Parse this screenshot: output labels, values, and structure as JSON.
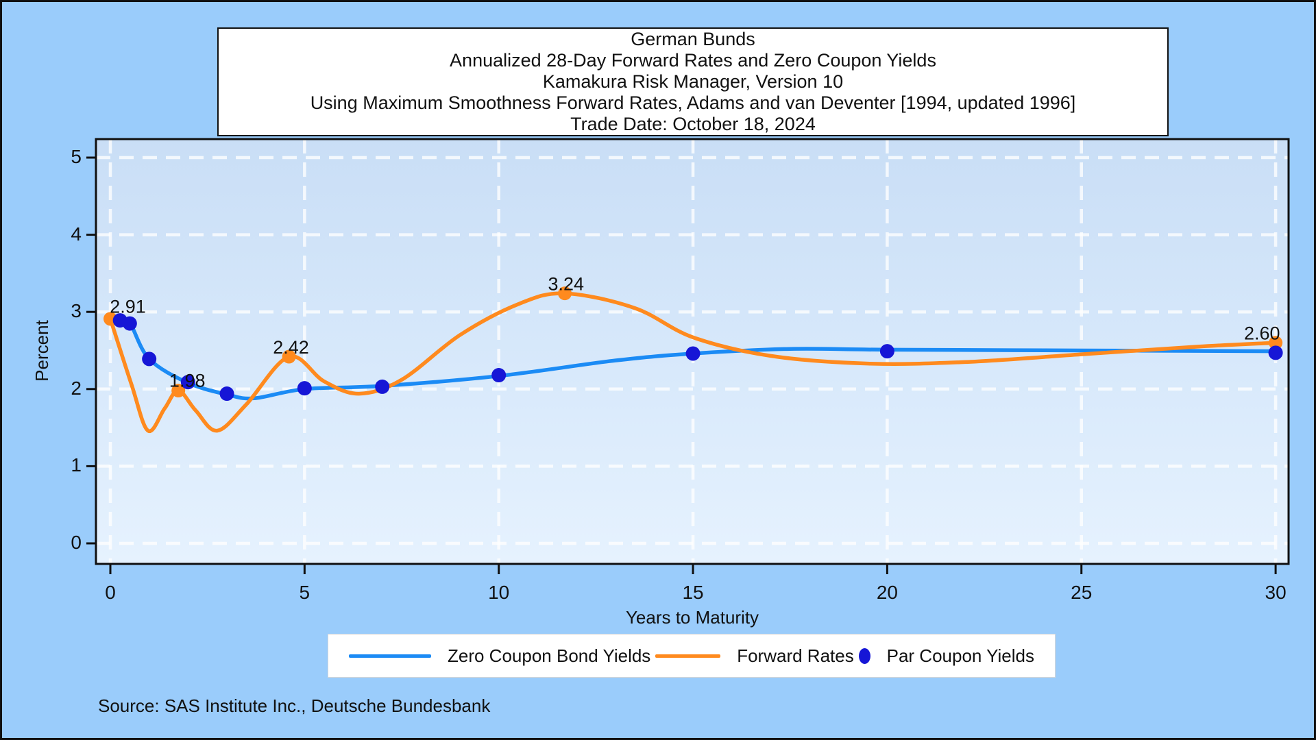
{
  "title": {
    "lines": [
      "German Bunds",
      "Annualized 28-Day Forward Rates and Zero Coupon Yields",
      "Kamakura Risk Manager, Version 10",
      "Using Maximum Smoothness Forward Rates, Adams and van Deventer [1994, updated 1996]",
      "Trade Date: October 18, 2024"
    ]
  },
  "source_text": "Source: SAS Institute Inc., Deutsche Bundesbank",
  "legend": {
    "items": [
      {
        "label": "Zero Coupon Bond Yields",
        "color": "#1b8bf5",
        "swatch": "line"
      },
      {
        "label": "Forward Rates",
        "color": "#ff8a1e",
        "swatch": "line"
      },
      {
        "label": "Par Coupon Yields",
        "color": "#1616d6",
        "swatch": "dot"
      }
    ]
  },
  "colors": {
    "outer_background": "#9accfb",
    "plot_background_top": "#c9def6",
    "plot_background_bottom": "#e6f2fe",
    "gridline": "#ffffff",
    "axis_frame": "#101010",
    "zero_coupon_line": "#1b8bf5",
    "forward_rate_line": "#ff8a1e",
    "par_coupon_dot": "#1616d6",
    "annotation_text": "#111111"
  },
  "chart_data": {
    "type": "line",
    "xlabel": "Years to Maturity",
    "ylabel": "Percent",
    "xlim": [
      -0.37,
      30.34
    ],
    "ylim": [
      -0.27,
      5.24
    ],
    "x_ticks": [
      0,
      5,
      10,
      15,
      20,
      25,
      30
    ],
    "y_ticks": [
      0,
      1,
      2,
      3,
      4,
      5
    ],
    "grid": "white-dashed",
    "legend_position": "bottom",
    "series": [
      {
        "name": "Zero Coupon Bond Yields",
        "type": "line",
        "color": "#1b8bf5",
        "points": [
          [
            0.25,
            2.89
          ],
          [
            0.5,
            2.86
          ],
          [
            1,
            2.39
          ],
          [
            2,
            2.08
          ],
          [
            3,
            1.93
          ],
          [
            3.7,
            1.88
          ],
          [
            5,
            2.0
          ],
          [
            7,
            2.04
          ],
          [
            10,
            2.17
          ],
          [
            13,
            2.37
          ],
          [
            15,
            2.46
          ],
          [
            17.5,
            2.52
          ],
          [
            20,
            2.51
          ],
          [
            25,
            2.5
          ],
          [
            30,
            2.49
          ]
        ]
      },
      {
        "name": "Forward Rates",
        "type": "line",
        "color": "#ff8a1e",
        "points": [
          [
            0,
            2.91
          ],
          [
            0.55,
            2.05
          ],
          [
            0.97,
            1.46
          ],
          [
            1.4,
            1.75
          ],
          [
            1.75,
            1.98
          ],
          [
            2.2,
            1.72
          ],
          [
            2.75,
            1.46
          ],
          [
            3.5,
            1.8
          ],
          [
            4.6,
            2.42
          ],
          [
            5.5,
            2.1
          ],
          [
            6.4,
            1.94
          ],
          [
            7.5,
            2.12
          ],
          [
            9,
            2.7
          ],
          [
            10.5,
            3.1
          ],
          [
            11.7,
            3.24
          ],
          [
            13.5,
            3.05
          ],
          [
            15,
            2.67
          ],
          [
            17,
            2.43
          ],
          [
            19.5,
            2.33
          ],
          [
            22,
            2.35
          ],
          [
            25,
            2.45
          ],
          [
            28,
            2.55
          ],
          [
            30,
            2.6
          ]
        ],
        "markers": [
          [
            0,
            2.91
          ],
          [
            1.75,
            1.98
          ],
          [
            4.6,
            2.42
          ],
          [
            11.7,
            3.24
          ],
          [
            30,
            2.6
          ]
        ]
      },
      {
        "name": "Par Coupon Yields",
        "type": "scatter",
        "color": "#1616d6",
        "points": [
          [
            0.25,
            2.89
          ],
          [
            0.5,
            2.85
          ],
          [
            1,
            2.39
          ],
          [
            2,
            2.09
          ],
          [
            3,
            1.94
          ],
          [
            5,
            2.01
          ],
          [
            7,
            2.03
          ],
          [
            10,
            2.18
          ],
          [
            15,
            2.46
          ],
          [
            20,
            2.49
          ],
          [
            30,
            2.47
          ]
        ]
      }
    ],
    "annotations": [
      {
        "text": "2.91",
        "x": 0.45,
        "y": 2.99
      },
      {
        "text": "1.98",
        "x": 1.98,
        "y": 2.03
      },
      {
        "text": "2.42",
        "x": 4.65,
        "y": 2.46
      },
      {
        "text": "3.24",
        "x": 11.73,
        "y": 3.28
      },
      {
        "text": "2.60",
        "x": 29.65,
        "y": 2.64
      }
    ]
  }
}
